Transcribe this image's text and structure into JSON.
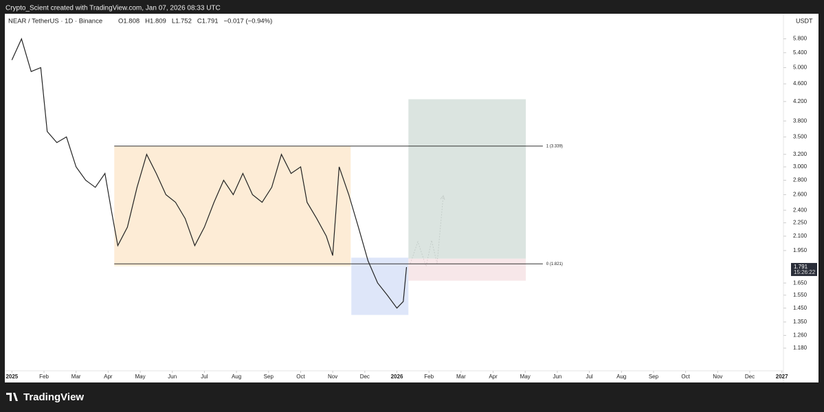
{
  "header": "Crypto_Scient created with TradingView.com, Jan 07, 2026 08:33 UTC",
  "footer": "TradingView",
  "chart_data": {
    "type": "line",
    "title": "NEAR / TetherUS · 1D · Binance",
    "ohlc": [
      "O1.808",
      "H1.809",
      "L1.752",
      "C1.791",
      "−0.017 (−0.94%)"
    ],
    "y_unit": "USDT",
    "log_scale": true,
    "color": "#222222",
    "x": [
      0.0,
      0.3,
      0.6,
      0.9,
      1.1,
      1.4,
      1.7,
      2.0,
      2.3,
      2.6,
      2.9,
      3.1,
      3.3,
      3.6,
      3.9,
      4.2,
      4.5,
      4.8,
      5.1,
      5.4,
      5.7,
      6.0,
      6.3,
      6.6,
      6.9,
      7.2,
      7.5,
      7.8,
      8.1,
      8.4,
      8.7,
      9.0,
      9.2,
      9.5,
      9.8,
      10.0,
      10.2,
      10.5,
      10.8,
      11.1,
      11.4,
      11.7,
      12.0,
      12.2,
      12.3
    ],
    "values": [
      5.2,
      5.8,
      4.9,
      5.0,
      3.6,
      3.4,
      3.5,
      3.0,
      2.8,
      2.7,
      2.9,
      2.4,
      2.0,
      2.2,
      2.7,
      3.2,
      2.9,
      2.6,
      2.5,
      2.3,
      2.0,
      2.2,
      2.5,
      2.8,
      2.6,
      2.9,
      2.6,
      2.5,
      2.7,
      3.2,
      2.9,
      3.0,
      2.5,
      2.3,
      2.1,
      1.9,
      3.0,
      2.6,
      2.2,
      1.85,
      1.65,
      1.55,
      1.45,
      1.5,
      1.791
    ],
    "xlim": [
      -0.2,
      24.05
    ],
    "xticks": [
      {
        "value": 0,
        "label": "2025"
      },
      {
        "value": 1,
        "label": "Feb"
      },
      {
        "value": 2,
        "label": "Mar"
      },
      {
        "value": 3,
        "label": "Apr"
      },
      {
        "value": 4,
        "label": "May"
      },
      {
        "value": 5,
        "label": "Jun"
      },
      {
        "value": 6,
        "label": "Jul"
      },
      {
        "value": 7,
        "label": "Aug"
      },
      {
        "value": 8,
        "label": "Sep"
      },
      {
        "value": 9,
        "label": "Oct"
      },
      {
        "value": 10,
        "label": "Nov"
      },
      {
        "value": 11,
        "label": "Dec"
      },
      {
        "value": 12,
        "label": "2026"
      },
      {
        "value": 13,
        "label": "Feb"
      },
      {
        "value": 14,
        "label": "Mar"
      },
      {
        "value": 15,
        "label": "Apr"
      },
      {
        "value": 16,
        "label": "May"
      },
      {
        "value": 17,
        "label": "Jun"
      },
      {
        "value": 18,
        "label": "Jul"
      },
      {
        "value": 19,
        "label": "Aug"
      },
      {
        "value": 20,
        "label": "Sep"
      },
      {
        "value": 21,
        "label": "Oct"
      },
      {
        "value": 22,
        "label": "Nov"
      },
      {
        "value": 23,
        "label": "Dec"
      },
      {
        "value": 24,
        "label": "2027"
      }
    ],
    "ylim": [
      1.05,
      6.6
    ],
    "yticks": [
      {
        "value": 5.8,
        "label": "5.800"
      },
      {
        "value": 5.4,
        "label": "5.400"
      },
      {
        "value": 5.0,
        "label": "5.000"
      },
      {
        "value": 4.6,
        "label": "4.600"
      },
      {
        "value": 4.2,
        "label": "4.200"
      },
      {
        "value": 3.8,
        "label": "3.800"
      },
      {
        "value": 3.5,
        "label": "3.500"
      },
      {
        "value": 3.2,
        "label": "3.200"
      },
      {
        "value": 3.0,
        "label": "3.000"
      },
      {
        "value": 2.8,
        "label": "2.800"
      },
      {
        "value": 2.6,
        "label": "2.600"
      },
      {
        "value": 2.4,
        "label": "2.400"
      },
      {
        "value": 2.25,
        "label": "2.250"
      },
      {
        "value": 2.1,
        "label": "2.100"
      },
      {
        "value": 1.95,
        "label": "1.950"
      },
      {
        "value": 1.65,
        "label": "1.650"
      },
      {
        "value": 1.55,
        "label": "1.550"
      },
      {
        "value": 1.45,
        "label": "1.450"
      },
      {
        "value": 1.35,
        "label": "1.350"
      },
      {
        "value": 1.26,
        "label": "1.260"
      },
      {
        "value": 1.18,
        "label": "1.180"
      }
    ],
    "last_price": {
      "value": 1.791,
      "label": "1.791"
    },
    "countdown": "15:26:22",
    "zones": [
      {
        "x": [
          3.19,
          10.56
        ],
        "y": [
          1.8,
          3.339
        ],
        "color": "#fde9cf"
      },
      {
        "x": [
          10.58,
          12.36
        ],
        "y": [
          1.4,
          1.88
        ],
        "color": "#d8e2f8"
      },
      {
        "x": [
          12.36,
          16.02
        ],
        "y": [
          1.87,
          4.25
        ],
        "color": "#d5dfda"
      },
      {
        "x": [
          12.36,
          16.02
        ],
        "y": [
          1.67,
          1.87
        ],
        "color": "#f6e3e5"
      }
    ],
    "levels": [
      {
        "value": 3.339,
        "label": "1 (3.339)",
        "x": [
          3.19,
          16.55
        ]
      },
      {
        "value": 1.821,
        "label": "0 (1.821)",
        "x": [
          3.19,
          16.55
        ]
      }
    ]
  }
}
